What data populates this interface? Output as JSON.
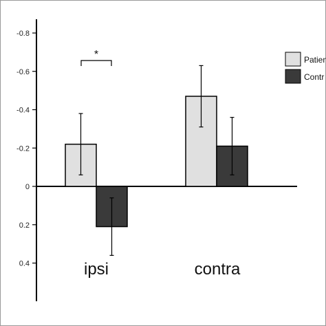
{
  "chart_data": {
    "type": "bar",
    "categories": [
      "ipsi",
      "contra"
    ],
    "series": [
      {
        "name": "Patients",
        "values": [
          -0.22,
          -0.47
        ],
        "errors": [
          0.16,
          0.16
        ],
        "color": "#e0e0e0"
      },
      {
        "name": "Controls",
        "values": [
          0.21,
          -0.21
        ],
        "errors": [
          0.15,
          0.15
        ],
        "color": "#3a3a3a"
      }
    ],
    "y_axis": {
      "range": [
        -0.85,
        0.6
      ],
      "inverted": true,
      "ticks": [
        "-0.8",
        "-0.6",
        "-0.4",
        "-0.2",
        "0",
        "0.2",
        "0.4"
      ],
      "tick_values": [
        -0.8,
        -0.6,
        -0.4,
        -0.2,
        0,
        0.2,
        0.4
      ]
    },
    "legend": {
      "placement": "top-right",
      "labels": [
        "Patien",
        "Contr"
      ]
    },
    "annotations": [
      {
        "text": "*",
        "between": "ipsi"
      }
    ],
    "grid": false
  }
}
